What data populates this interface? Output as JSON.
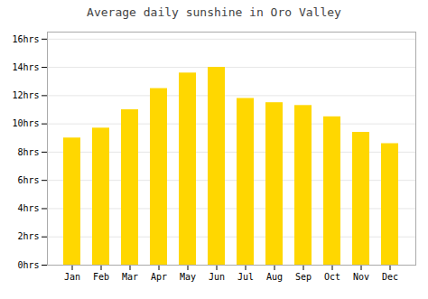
{
  "chart_data": {
    "type": "bar",
    "title": "Average daily sunshine in Oro Valley",
    "categories": [
      "Jan",
      "Feb",
      "Mar",
      "Apr",
      "May",
      "Jun",
      "Jul",
      "Aug",
      "Sep",
      "Oct",
      "Nov",
      "Dec"
    ],
    "values": [
      9.0,
      9.7,
      11.0,
      12.5,
      13.6,
      14.0,
      11.8,
      11.5,
      11.3,
      10.5,
      9.4,
      8.6
    ],
    "color": "#FFD700",
    "ylim": [
      0,
      16.5
    ],
    "yticks": [
      {
        "value": 0,
        "label": "0hrs"
      },
      {
        "value": 2,
        "label": "2hrs"
      },
      {
        "value": 4,
        "label": "4hrs"
      },
      {
        "value": 6,
        "label": "6hrs"
      },
      {
        "value": 8,
        "label": "8hrs"
      },
      {
        "value": 10,
        "label": "10hrs"
      },
      {
        "value": 12,
        "label": "12hrs"
      },
      {
        "value": 14,
        "label": "14hrs"
      },
      {
        "value": 16,
        "label": "16hrs"
      }
    ],
    "grid": true
  }
}
